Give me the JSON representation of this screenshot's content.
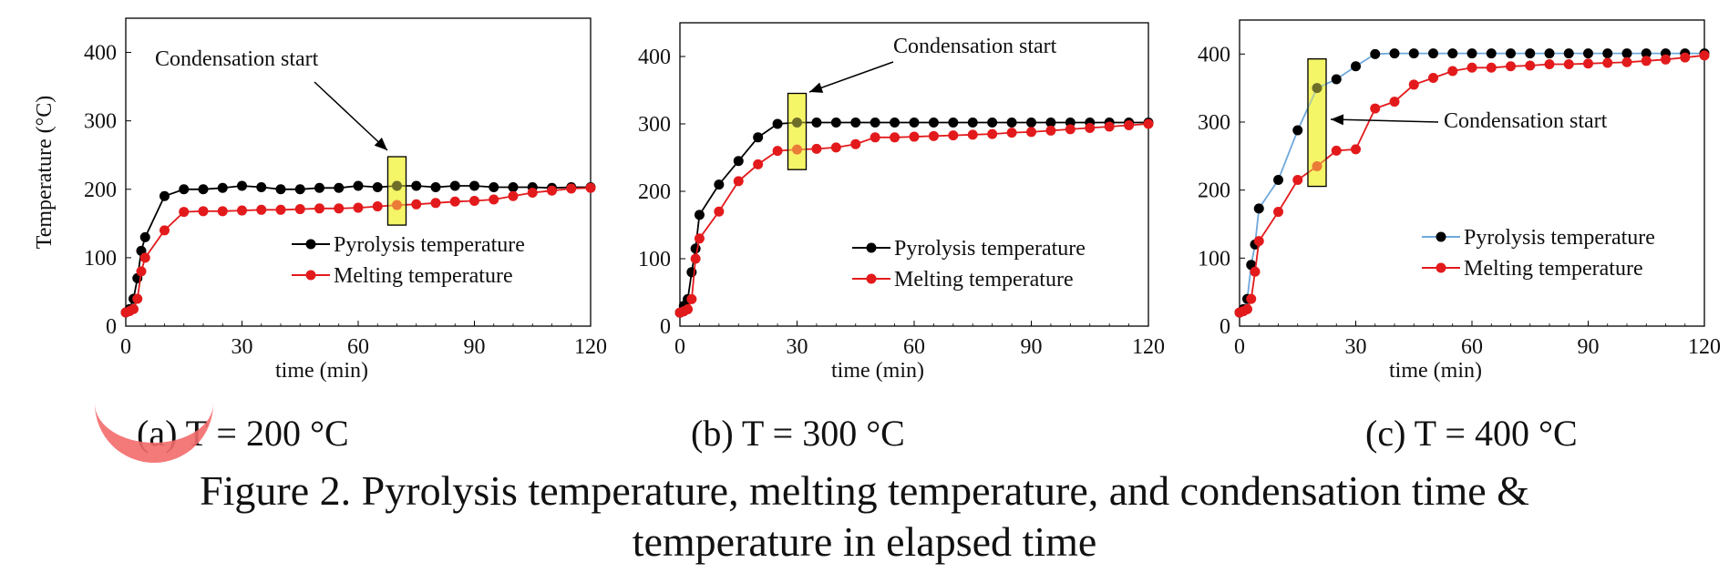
{
  "chart_data": [
    {
      "type": "line",
      "subcaption": "(a)  T = 200 °C",
      "xlabel": "time (min)",
      "ylabel": "Temperature (°C)",
      "xlim": [
        0,
        120
      ],
      "ylim": [
        0,
        450
      ],
      "xticks": [
        0,
        30,
        60,
        90,
        120
      ],
      "yticks": [
        0,
        100,
        200,
        300,
        400
      ],
      "legend_position": "center-right",
      "annotation": {
        "text": "Condensation start",
        "x": 70
      },
      "series": [
        {
          "name": "Pyrolysis temperature",
          "color": "#000000",
          "line_color": "#000000",
          "x": [
            0,
            1,
            2,
            3,
            4,
            5,
            10,
            15,
            20,
            25,
            30,
            35,
            40,
            45,
            50,
            55,
            60,
            65,
            70,
            75,
            80,
            85,
            90,
            95,
            100,
            105,
            110,
            115,
            120
          ],
          "y": [
            20,
            25,
            40,
            70,
            110,
            130,
            190,
            200,
            200,
            202,
            205,
            203,
            200,
            200,
            202,
            202,
            205,
            203,
            205,
            205,
            203,
            205,
            205,
            203,
            203,
            203,
            202,
            203,
            203
          ]
        },
        {
          "name": "Melting temperature",
          "color": "#e31a1c",
          "line_color": "#e31a1c",
          "x": [
            0,
            1,
            2,
            3,
            4,
            5,
            10,
            15,
            20,
            25,
            30,
            35,
            40,
            45,
            50,
            55,
            60,
            65,
            70,
            75,
            80,
            85,
            90,
            95,
            100,
            105,
            110,
            115,
            120
          ],
          "y": [
            20,
            22,
            25,
            40,
            80,
            100,
            140,
            167,
            168,
            168,
            169,
            170,
            170,
            171,
            172,
            172,
            173,
            175,
            177,
            178,
            180,
            182,
            183,
            185,
            190,
            195,
            198,
            201,
            202
          ]
        }
      ]
    },
    {
      "type": "line",
      "subcaption": "(b)  T = 300 °C",
      "xlabel": "time (min)",
      "ylabel": "",
      "xlim": [
        0,
        120
      ],
      "ylim": [
        0,
        450
      ],
      "xticks": [
        0,
        30,
        60,
        90,
        120
      ],
      "yticks": [
        0,
        100,
        200,
        300,
        400
      ],
      "legend_position": "center-right",
      "annotation": {
        "text": "Condensation start",
        "x": 30
      },
      "series": [
        {
          "name": "Pyrolysis temperature",
          "color": "#000000",
          "line_color": "#000000",
          "x": [
            0,
            1,
            2,
            3,
            4,
            5,
            10,
            15,
            20,
            25,
            30,
            35,
            40,
            45,
            50,
            55,
            60,
            65,
            70,
            75,
            80,
            85,
            90,
            95,
            100,
            105,
            110,
            115,
            120
          ],
          "y": [
            20,
            30,
            40,
            80,
            115,
            165,
            210,
            245,
            280,
            300,
            302,
            302,
            302,
            302,
            302,
            302,
            302,
            302,
            302,
            302,
            302,
            302,
            302,
            302,
            302,
            302,
            302,
            302,
            302
          ]
        },
        {
          "name": "Melting temperature",
          "color": "#e31a1c",
          "line_color": "#e31a1c",
          "x": [
            0,
            1,
            2,
            3,
            4,
            5,
            10,
            15,
            20,
            25,
            30,
            35,
            40,
            45,
            50,
            55,
            60,
            65,
            70,
            75,
            80,
            85,
            90,
            95,
            100,
            105,
            110,
            115,
            120
          ],
          "y": [
            20,
            22,
            25,
            40,
            100,
            130,
            170,
            215,
            240,
            260,
            262,
            263,
            265,
            270,
            280,
            280,
            281,
            282,
            283,
            284,
            285,
            287,
            288,
            290,
            292,
            294,
            296,
            298,
            300
          ]
        }
      ]
    },
    {
      "type": "line",
      "subcaption": "(c) T = 400 °C",
      "xlabel": "time (min)",
      "ylabel": "",
      "xlim": [
        0,
        120
      ],
      "ylim": [
        0,
        450
      ],
      "xticks": [
        0,
        30,
        60,
        90,
        120
      ],
      "yticks": [
        0,
        100,
        200,
        300,
        400
      ],
      "legend_position": "center-right",
      "annotation": {
        "text": "Condensation start",
        "x": 20
      },
      "series": [
        {
          "name": "Pyrolysis temperature",
          "color": "#000000",
          "line_color": "#6fa8dc",
          "x": [
            0,
            1,
            2,
            3,
            4,
            5,
            10,
            15,
            20,
            25,
            30,
            35,
            40,
            45,
            50,
            55,
            60,
            65,
            70,
            75,
            80,
            85,
            90,
            95,
            100,
            105,
            110,
            115,
            120
          ],
          "y": [
            20,
            25,
            40,
            90,
            120,
            173,
            215,
            288,
            350,
            363,
            382,
            400,
            401,
            401,
            401,
            401,
            401,
            401,
            401,
            401,
            401,
            401,
            401,
            401,
            401,
            401,
            401,
            401,
            401
          ]
        },
        {
          "name": "Melting temperature",
          "color": "#e31a1c",
          "line_color": "#e31a1c",
          "x": [
            0,
            1,
            2,
            3,
            4,
            5,
            10,
            15,
            20,
            25,
            30,
            35,
            40,
            45,
            50,
            55,
            60,
            65,
            70,
            75,
            80,
            85,
            90,
            95,
            100,
            105,
            110,
            115,
            120
          ],
          "y": [
            20,
            22,
            25,
            40,
            80,
            125,
            168,
            215,
            235,
            258,
            260,
            320,
            330,
            355,
            365,
            375,
            380,
            380,
            382,
            383,
            385,
            385,
            386,
            387,
            388,
            390,
            392,
            395,
            398
          ]
        }
      ]
    }
  ],
  "caption": {
    "line1": "Figure 2. Pyrolysis temperature, melting temperature, and condensation time &",
    "line2": "temperature in elapsed time"
  },
  "colors": {
    "highlight_fill": "#f4f45a",
    "annotation_mark": "#f36b6b"
  }
}
